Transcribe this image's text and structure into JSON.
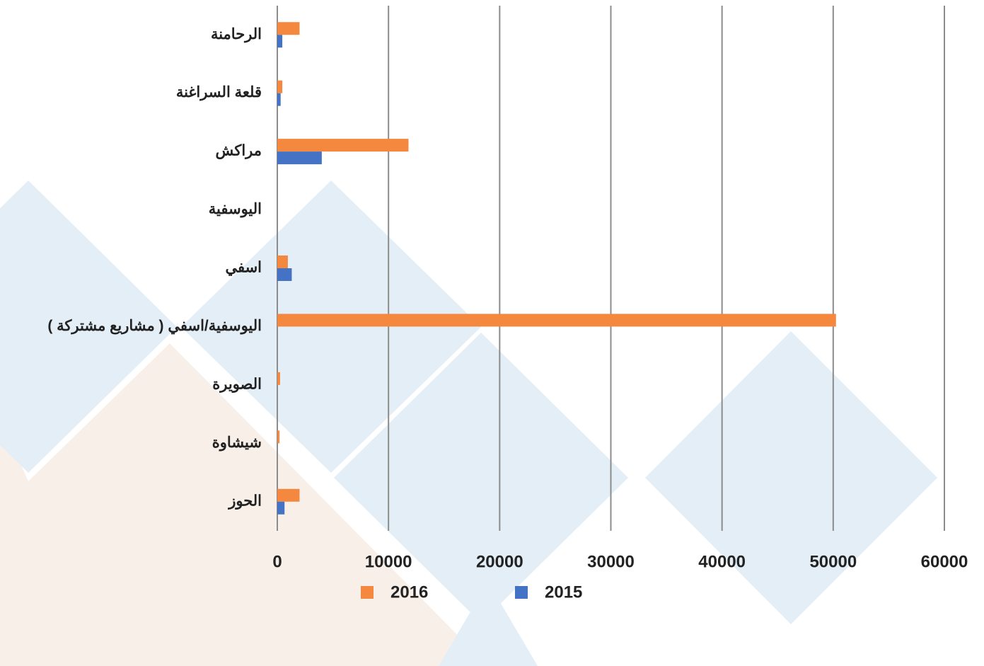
{
  "chart_data": {
    "type": "hbar",
    "categories": [
      "الرحامنة",
      "قلعة السراغنة",
      "مراكش",
      "اليوسفية",
      "اسفي",
      "اليوسفية/اسفي ( مشاريع مشتركة )",
      "الصويرة",
      "شيشاوة",
      "الحوز"
    ],
    "series": [
      {
        "name": "2016",
        "color": "#f4883e",
        "values": [
          2000,
          450,
          11800,
          0,
          950,
          50250,
          250,
          200,
          2000
        ]
      },
      {
        "name": "2015",
        "color": "#4472c4",
        "values": [
          450,
          300,
          4000,
          0,
          1300,
          0,
          0,
          0,
          650
        ]
      }
    ],
    "xlim": [
      0,
      60000
    ],
    "xticks": [
      0,
      10000,
      20000,
      30000,
      40000,
      50000,
      60000
    ],
    "grid": true
  }
}
